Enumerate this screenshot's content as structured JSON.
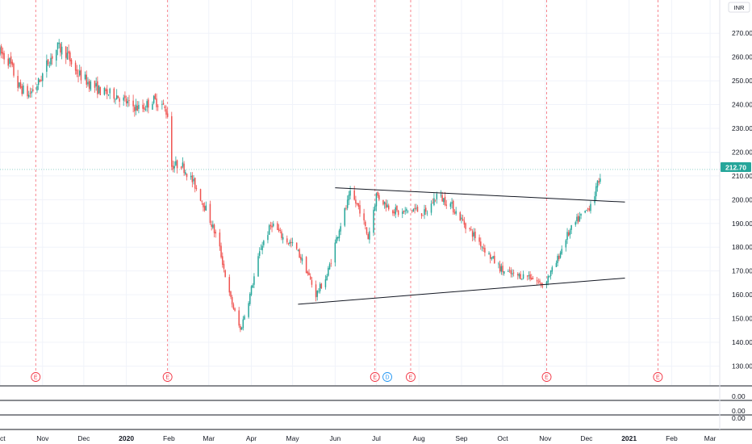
{
  "chart_data": {
    "type": "candlestick",
    "currency": "INR",
    "price_label": "212.70",
    "y_ticks": [
      130,
      140,
      150,
      160,
      170,
      180,
      190,
      200,
      210,
      220,
      230,
      240,
      250,
      260,
      270
    ],
    "ylim": [
      122,
      284
    ],
    "x_labels": [
      "Oct",
      "Nov",
      "Dec",
      "2020",
      "Feb",
      "Mar",
      "Apr",
      "May",
      "Jun",
      "Jul",
      "Aug",
      "Sep",
      "Oct",
      "Nov",
      "Dec",
      "2021",
      "Feb",
      "Mar"
    ],
    "x_range": [
      "2019-10-01",
      "2021-03-08"
    ],
    "anchors": [
      {
        "d": "2019-10-01",
        "p": 262
      },
      {
        "d": "2019-10-08",
        "p": 258
      },
      {
        "d": "2019-10-14",
        "p": 248
      },
      {
        "d": "2019-10-22",
        "p": 244
      },
      {
        "d": "2019-10-30",
        "p": 250
      },
      {
        "d": "2019-11-05",
        "p": 258
      },
      {
        "d": "2019-11-12",
        "p": 264
      },
      {
        "d": "2019-11-18",
        "p": 262
      },
      {
        "d": "2019-11-25",
        "p": 254
      },
      {
        "d": "2019-12-05",
        "p": 249
      },
      {
        "d": "2019-12-15",
        "p": 245
      },
      {
        "d": "2019-12-25",
        "p": 244
      },
      {
        "d": "2020-01-03",
        "p": 240
      },
      {
        "d": "2020-01-12",
        "p": 238
      },
      {
        "d": "2020-01-20",
        "p": 242
      },
      {
        "d": "2020-01-27",
        "p": 240
      },
      {
        "d": "2020-01-31",
        "p": 236
      },
      {
        "d": "2020-02-01",
        "p": 214
      },
      {
        "d": "2020-02-10",
        "p": 215
      },
      {
        "d": "2020-02-20",
        "p": 206
      },
      {
        "d": "2020-02-28",
        "p": 196
      },
      {
        "d": "2020-03-08",
        "p": 182
      },
      {
        "d": "2020-03-16",
        "p": 160
      },
      {
        "d": "2020-03-24",
        "p": 145
      },
      {
        "d": "2020-03-31",
        "p": 160
      },
      {
        "d": "2020-04-08",
        "p": 180
      },
      {
        "d": "2020-04-16",
        "p": 190
      },
      {
        "d": "2020-04-24",
        "p": 184
      },
      {
        "d": "2020-05-03",
        "p": 180
      },
      {
        "d": "2020-05-10",
        "p": 172
      },
      {
        "d": "2020-05-18",
        "p": 160
      },
      {
        "d": "2020-05-26",
        "p": 168
      },
      {
        "d": "2020-06-04",
        "p": 188
      },
      {
        "d": "2020-06-12",
        "p": 202
      },
      {
        "d": "2020-06-19",
        "p": 196
      },
      {
        "d": "2020-06-25",
        "p": 184
      },
      {
        "d": "2020-07-01",
        "p": 202
      },
      {
        "d": "2020-07-08",
        "p": 198
      },
      {
        "d": "2020-07-18",
        "p": 194
      },
      {
        "d": "2020-07-28",
        "p": 196
      },
      {
        "d": "2020-08-06",
        "p": 194
      },
      {
        "d": "2020-08-14",
        "p": 202
      },
      {
        "d": "2020-08-24",
        "p": 198
      },
      {
        "d": "2020-09-03",
        "p": 190
      },
      {
        "d": "2020-09-13",
        "p": 183
      },
      {
        "d": "2020-09-22",
        "p": 176
      },
      {
        "d": "2020-10-01",
        "p": 170
      },
      {
        "d": "2020-10-10",
        "p": 168
      },
      {
        "d": "2020-10-20",
        "p": 168
      },
      {
        "d": "2020-10-30",
        "p": 164
      },
      {
        "d": "2020-11-08",
        "p": 172
      },
      {
        "d": "2020-11-16",
        "p": 184
      },
      {
        "d": "2020-11-24",
        "p": 191
      },
      {
        "d": "2020-12-02",
        "p": 196
      },
      {
        "d": "2020-12-08",
        "p": 204
      },
      {
        "d": "2020-12-12",
        "p": 212.7
      }
    ],
    "event_markers": [
      {
        "d": "2019-10-27",
        "label": "E",
        "kind": "earnings"
      },
      {
        "d": "2020-01-31",
        "label": "E",
        "kind": "earnings"
      },
      {
        "d": "2020-06-30",
        "label": "E",
        "kind": "earnings"
      },
      {
        "d": "2020-07-09",
        "label": "D",
        "kind": "dividend"
      },
      {
        "d": "2020-07-26",
        "label": "E",
        "kind": "earnings"
      },
      {
        "d": "2020-11-02",
        "label": "E",
        "kind": "earnings"
      },
      {
        "d": "2021-01-22",
        "label": "E",
        "kind": "earnings"
      }
    ],
    "trendlines": [
      {
        "from": {
          "d": "2020-05-05",
          "p": 156
        },
        "to": {
          "d": "2020-12-29",
          "p": 167
        }
      },
      {
        "from": {
          "d": "2020-06-01",
          "p": 205
        },
        "to": {
          "d": "2020-12-29",
          "p": 199
        }
      }
    ],
    "sub_panes": [
      {
        "label": "0.00"
      },
      {
        "label": "0.00"
      },
      {
        "label": "0.00"
      }
    ],
    "colors": {
      "up": "#26a69a",
      "down": "#ef5350",
      "grid": "#f0f3fa",
      "event_line": "#f23645",
      "dividend": "#2196f3",
      "price_line": "#26a69a",
      "trendline": "#131722"
    }
  }
}
